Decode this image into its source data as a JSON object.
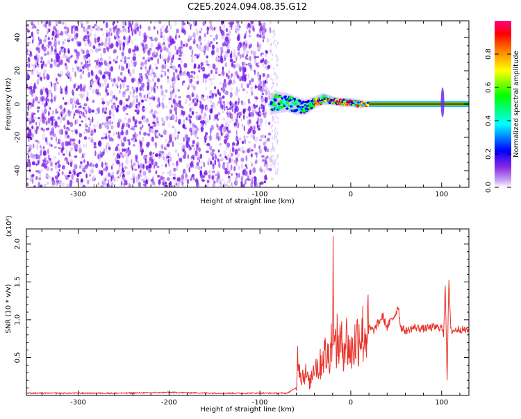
{
  "title": "C2E5.2024.094.08.35.G12",
  "chart_data": [
    {
      "type": "heatmap",
      "xlabel": "Height of straight line (km)",
      "ylabel": "Frequency (Hz)",
      "xlim": [
        -357,
        130
      ],
      "ylim": [
        -50,
        50
      ],
      "xticks": [
        -300,
        -200,
        -100,
        0,
        100
      ],
      "yticks": [
        -40,
        -20,
        0,
        20,
        40
      ],
      "colorbar": {
        "label": "Normalized spectral amplitude",
        "ticks": [
          "0.0",
          "0.2",
          "0.4",
          "0.6",
          "0.8"
        ],
        "range": [
          0,
          1
        ],
        "colors": [
          "#ffffff",
          "#8a2be2",
          "#0000ff",
          "#00ffff",
          "#00ff00",
          "#ffff00",
          "#ff8000",
          "#ff0000",
          "#ff0080"
        ]
      },
      "noise_region": {
        "x_start": -357,
        "x_end": -88,
        "f_min": -50,
        "f_max": 48
      },
      "signal_track": {
        "x": [
          -88,
          -80,
          -70,
          -60,
          -50,
          -40,
          -30,
          -20,
          -10,
          0,
          10,
          20,
          40,
          60,
          80,
          100,
          110,
          130
        ],
        "f": [
          0,
          1,
          1,
          -1,
          -2,
          1,
          3,
          2,
          1,
          1,
          0,
          0,
          0,
          0,
          0,
          0,
          0,
          0
        ],
        "width": [
          6,
          6,
          5,
          5,
          4,
          3,
          3,
          2,
          2,
          2,
          2,
          1,
          1,
          1,
          1,
          1,
          1,
          1
        ]
      },
      "spike": {
        "x": 101,
        "f_min": -8,
        "f_max": 10
      }
    },
    {
      "type": "line",
      "xlabel": "Height of straight line (km)",
      "ylabel": "SNR (10 * v/v)",
      "scale_label": "(x10⁴)",
      "xlim": [
        -357,
        130
      ],
      "ylim": [
        0,
        2.2
      ],
      "xticks": [
        -300,
        -200,
        -100,
        0,
        100
      ],
      "yticks": [
        0.5,
        1.0,
        1.5,
        2.0
      ],
      "ytick_labels": [
        "0.5",
        "1.0",
        "1.5",
        "2.0"
      ],
      "color": "#e8332a",
      "series": [
        {
          "x": [
            -357,
            -300,
            -250,
            -200,
            -150,
            -100,
            -70,
            -60,
            -58,
            -55,
            -50,
            -45,
            -40,
            -35,
            -30,
            -25,
            -20,
            -19,
            -18,
            -15,
            -10,
            -5,
            0,
            5,
            10,
            15,
            20,
            25,
            30,
            35,
            40,
            45,
            50,
            52,
            55,
            60,
            70,
            80,
            90,
            100,
            102,
            104,
            106,
            108,
            110,
            120,
            130
          ],
          "y": [
            0.03,
            0.03,
            0.03,
            0.04,
            0.03,
            0.03,
            0.03,
            0.1,
            0.6,
            0.25,
            0.3,
            0.15,
            0.45,
            0.35,
            0.55,
            0.5,
            0.8,
            2.2,
            0.6,
            0.7,
            0.65,
            0.75,
            0.55,
            0.7,
            0.85,
            0.8,
            0.9,
            0.85,
            0.95,
            1.05,
            0.9,
            1.0,
            1.1,
            1.2,
            0.9,
            0.85,
            0.9,
            0.88,
            0.9,
            0.9,
            0.8,
            1.5,
            0.2,
            1.55,
            0.85,
            0.88,
            0.85
          ]
        }
      ]
    }
  ]
}
